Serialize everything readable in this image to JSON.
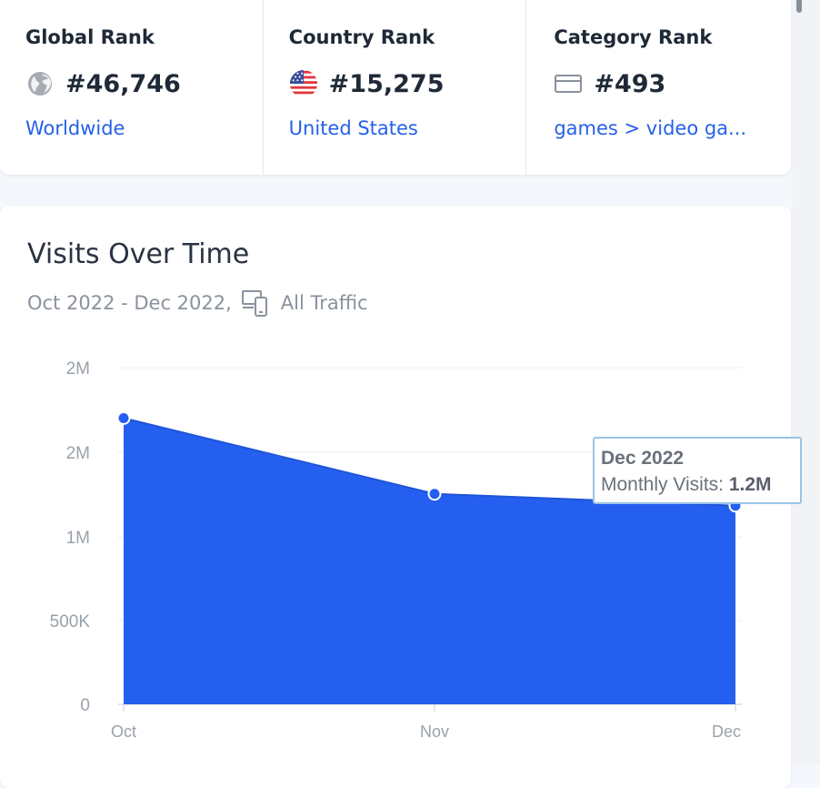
{
  "ranks": {
    "global": {
      "title": "Global Rank",
      "value": "#46,746",
      "link": "Worldwide",
      "icon": "globe-icon"
    },
    "country": {
      "title": "Country Rank",
      "value": "#15,275",
      "link": "United States",
      "icon": "us-flag-icon"
    },
    "category": {
      "title": "Category Rank",
      "value": "#493",
      "link": "games > video ga...",
      "icon": "category-icon"
    }
  },
  "visits": {
    "title": "Visits Over Time",
    "period": "Oct 2022 - Dec 2022,",
    "traffic": "All Traffic",
    "traffic_icon": "devices-icon"
  },
  "tooltip": {
    "date": "Dec 2022",
    "label": "Monthly Visits:",
    "value": "1.2M"
  },
  "colors": {
    "accent": "#2560e8",
    "area": "#245ff0",
    "grid": "#e8ecf1"
  },
  "chart_data": {
    "type": "area",
    "x": [
      "Oct",
      "Nov",
      "Dec"
    ],
    "series": [
      {
        "values": [
          1700000,
          1250000,
          1180000
        ]
      }
    ],
    "y_ticks": [
      0,
      500000,
      1000000,
      1500000,
      2000000
    ],
    "y_tick_labels": [
      "0",
      "500K",
      "1M",
      "2M",
      "2M"
    ],
    "ylim": [
      0,
      2000000
    ],
    "grid": true,
    "legend": "none"
  }
}
